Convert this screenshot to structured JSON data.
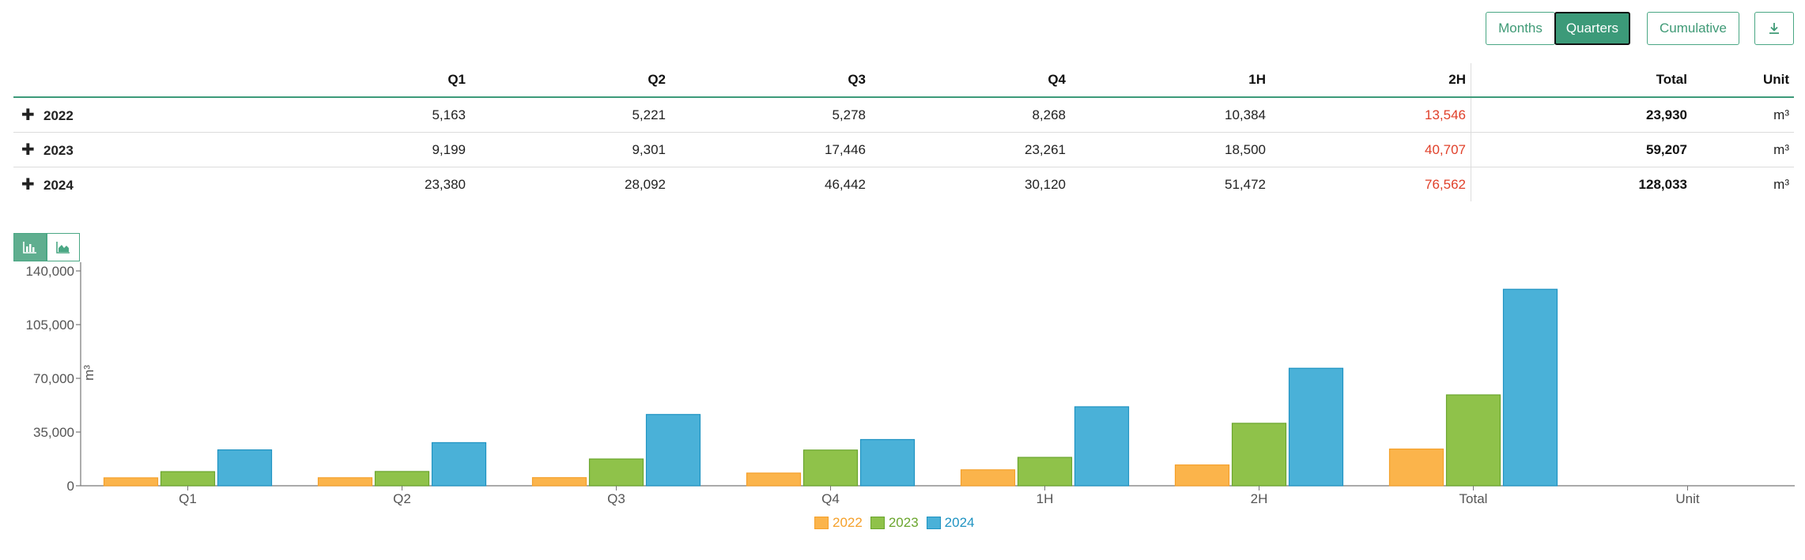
{
  "toolbar": {
    "months_label": "Months",
    "quarters_label": "Quarters",
    "cumulative_label": "Cumulative",
    "download_icon": "download-icon"
  },
  "table": {
    "headers": [
      "",
      "Q1",
      "Q2",
      "Q3",
      "Q4",
      "1H",
      "2H",
      "Total",
      "Unit"
    ],
    "rows": [
      {
        "year": "2022",
        "cells": [
          "5,163",
          "5,221",
          "5,278",
          "8,268",
          "10,384",
          "13,546"
        ],
        "total": "23,930",
        "unit": "m³"
      },
      {
        "year": "2023",
        "cells": [
          "9,199",
          "9,301",
          "17,446",
          "23,261",
          "18,500",
          "40,707"
        ],
        "total": "59,207",
        "unit": "m³"
      },
      {
        "year": "2024",
        "cells": [
          "23,380",
          "28,092",
          "46,442",
          "30,120",
          "51,472",
          "76,562"
        ],
        "total": "128,033",
        "unit": "m³"
      }
    ],
    "expand_icon": "plus-icon"
  },
  "chart_toggle": {
    "bar_icon": "bar-chart-icon",
    "area_icon": "area-chart-icon"
  },
  "colors": {
    "2022": {
      "fill": "#fbb44b",
      "stroke": "#f5a02a"
    },
    "2023": {
      "fill": "#8fc24a",
      "stroke": "#6aa52d"
    },
    "2024": {
      "fill": "#4ab1d8",
      "stroke": "#1f93c2"
    },
    "accent": "#3c9a79",
    "highlight": "#e0402a"
  },
  "chart_data": {
    "type": "bar",
    "categories": [
      "Q1",
      "Q2",
      "Q3",
      "Q4",
      "1H",
      "2H",
      "Total",
      "Unit"
    ],
    "series": [
      {
        "name": "2022",
        "values": [
          5163,
          5221,
          5278,
          8268,
          10384,
          13546,
          23930,
          null
        ]
      },
      {
        "name": "2023",
        "values": [
          9199,
          9301,
          17446,
          23261,
          18500,
          40707,
          59207,
          null
        ]
      },
      {
        "name": "2024",
        "values": [
          23380,
          28092,
          46442,
          30120,
          51472,
          76562,
          128033,
          null
        ]
      }
    ],
    "ylabel": "m³",
    "yticks": [
      "0",
      "35,000",
      "70,000",
      "105,000",
      "140,000"
    ],
    "ylim": [
      0,
      140000
    ],
    "legend": [
      "2022",
      "2023",
      "2024"
    ]
  }
}
